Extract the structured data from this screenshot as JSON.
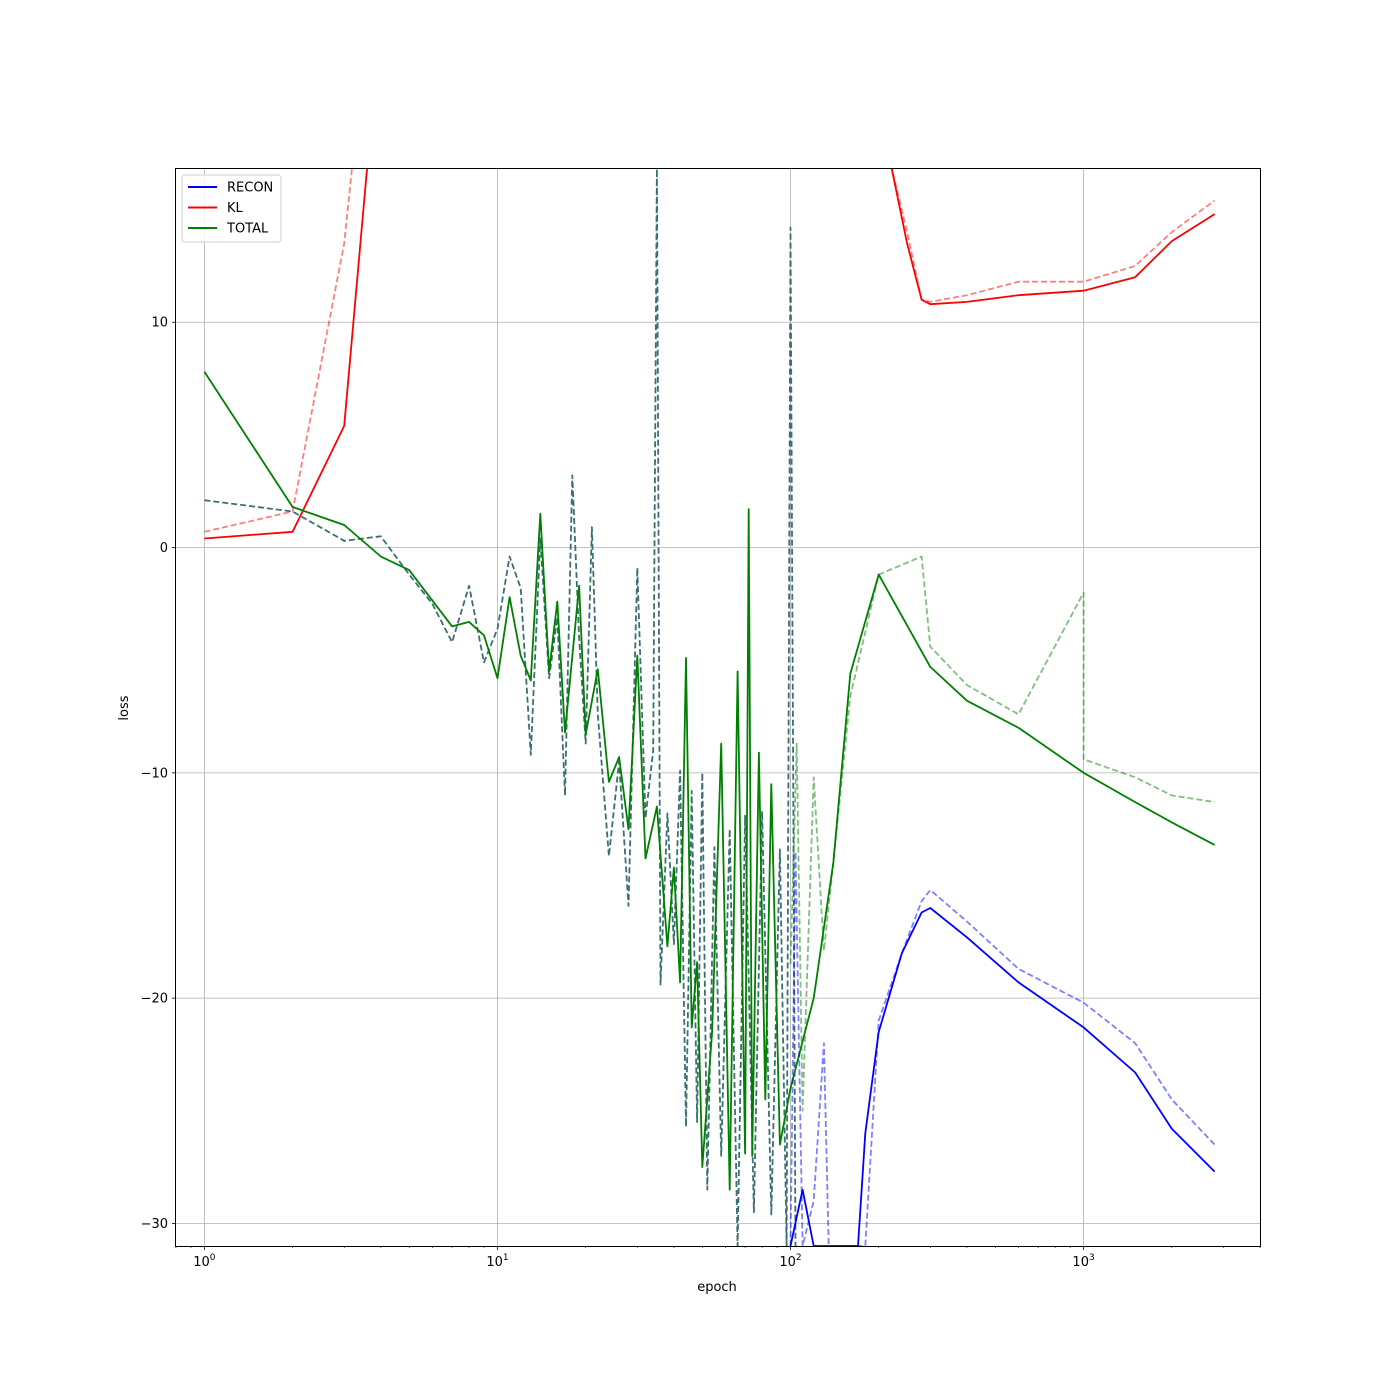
{
  "chart_data": {
    "type": "line",
    "title": "",
    "xlabel": "epoch",
    "ylabel": "loss",
    "xscale": "log",
    "xlim": [
      0.8,
      4000
    ],
    "ylim": [
      -31,
      16.8
    ],
    "grid": true,
    "legend_position": "top-left",
    "x_ticks": [
      {
        "value": 1,
        "base": "10",
        "exp": "0"
      },
      {
        "value": 10,
        "base": "10",
        "exp": "1"
      },
      {
        "value": 100,
        "base": "10",
        "exp": "2"
      },
      {
        "value": 1000,
        "base": "10",
        "exp": "3"
      }
    ],
    "y_ticks": [
      {
        "value": 10,
        "label": "10"
      },
      {
        "value": 0,
        "label": "0"
      },
      {
        "value": -10,
        "label": "−10"
      },
      {
        "value": -20,
        "label": "−20"
      },
      {
        "value": -30,
        "label": "−30"
      }
    ],
    "colors": {
      "recon": "#0000ff",
      "kl": "#ff0000",
      "total": "#008000",
      "overlap": "#3b6f73"
    },
    "legend": [
      {
        "name": "RECON",
        "color": "#0000ff"
      },
      {
        "name": "KL",
        "color": "#ff0000"
      },
      {
        "name": "TOTAL",
        "color": "#008000"
      }
    ],
    "series": [
      {
        "name": "KL",
        "role": "validation",
        "color": "#ff0000",
        "dashed": true,
        "opacity": 0.5,
        "points": [
          [
            1,
            0.7
          ],
          [
            2,
            1.6
          ],
          [
            3,
            13.5
          ],
          [
            3.2,
            17
          ],
          [
            220,
            17
          ],
          [
            250,
            14
          ],
          [
            280,
            11
          ],
          [
            300,
            10.9
          ],
          [
            400,
            11.2
          ],
          [
            600,
            11.8
          ],
          [
            1000,
            11.8
          ],
          [
            1500,
            12.5
          ],
          [
            2000,
            14
          ],
          [
            2800,
            15.4
          ]
        ]
      },
      {
        "name": "KL",
        "role": "train",
        "color": "#ff0000",
        "dashed": false,
        "opacity": 1,
        "points": [
          [
            1,
            0.4
          ],
          [
            2,
            0.7
          ],
          [
            3,
            5.4
          ],
          [
            3.6,
            17
          ],
          [
            220,
            17
          ],
          [
            250,
            13.5
          ],
          [
            280,
            11
          ],
          [
            300,
            10.8
          ],
          [
            400,
            10.9
          ],
          [
            600,
            11.2
          ],
          [
            1000,
            11.4
          ],
          [
            1500,
            12
          ],
          [
            2000,
            13.6
          ],
          [
            2800,
            14.8
          ]
        ]
      },
      {
        "name": "TOTAL",
        "role": "validation",
        "color": "#3b6f73",
        "dashed": true,
        "opacity": 1,
        "points": [
          [
            1,
            2.1
          ],
          [
            2,
            1.6
          ],
          [
            3,
            0.3
          ],
          [
            4,
            0.5
          ],
          [
            5,
            -1.2
          ],
          [
            6,
            -2.5
          ],
          [
            7,
            -4.2
          ],
          [
            8,
            -1.7
          ],
          [
            9,
            -5.1
          ],
          [
            10,
            -3.6
          ],
          [
            11,
            -0.4
          ],
          [
            12,
            -1.8
          ],
          [
            13,
            -9.2
          ],
          [
            14,
            0.4
          ],
          [
            15,
            -5.8
          ],
          [
            16,
            -3.1
          ],
          [
            17,
            -11
          ],
          [
            18,
            3.2
          ],
          [
            19,
            -4
          ],
          [
            20,
            -8.7
          ],
          [
            21,
            0.9
          ],
          [
            22,
            -7.4
          ],
          [
            24,
            -13.7
          ],
          [
            26,
            -9.5
          ],
          [
            28,
            -15.9
          ],
          [
            30,
            -0.9
          ],
          [
            32,
            -12
          ],
          [
            34,
            -9
          ],
          [
            35,
            17
          ],
          [
            36,
            -19.4
          ],
          [
            38,
            -11.8
          ],
          [
            40,
            -17.6
          ],
          [
            42,
            -9.9
          ],
          [
            44,
            -25.7
          ],
          [
            46,
            -10.8
          ],
          [
            48,
            -25.5
          ],
          [
            50,
            -10
          ],
          [
            52,
            -28.5
          ],
          [
            55,
            -13.3
          ],
          [
            58,
            -27
          ],
          [
            62,
            -12.5
          ],
          [
            66,
            -31
          ],
          [
            70,
            -11.9
          ],
          [
            75,
            -29.5
          ],
          [
            80,
            -11.7
          ],
          [
            86,
            -29.6
          ],
          [
            92,
            -13.4
          ],
          [
            97,
            -31
          ],
          [
            100,
            14.2
          ],
          [
            104,
            -31
          ]
        ]
      },
      {
        "name": "TOTAL",
        "role": "train-validation",
        "color": "#008000",
        "dashed": true,
        "opacity": 0.5,
        "points": [
          [
            100,
            -18.5
          ],
          [
            105,
            -8.7
          ],
          [
            110,
            -25
          ],
          [
            120,
            -10.2
          ],
          [
            130,
            -17.9
          ],
          [
            140,
            -14
          ],
          [
            160,
            -6.6
          ],
          [
            200,
            -1.2
          ],
          [
            280,
            -0.4
          ],
          [
            300,
            -4.4
          ],
          [
            400,
            -6.1
          ],
          [
            600,
            -7.4
          ],
          [
            1000,
            -2
          ],
          [
            1000,
            -9.4
          ],
          [
            1500,
            -10.2
          ],
          [
            2000,
            -11
          ],
          [
            2800,
            -11.3
          ]
        ]
      },
      {
        "name": "TOTAL",
        "role": "train",
        "color": "#008000",
        "dashed": false,
        "opacity": 1,
        "points": [
          [
            1,
            7.8
          ],
          [
            2,
            1.8
          ],
          [
            3,
            1.0
          ],
          [
            4,
            -0.4
          ],
          [
            5,
            -1.0
          ],
          [
            7,
            -3.5
          ],
          [
            8,
            -3.3
          ],
          [
            9,
            -3.9
          ],
          [
            10,
            -5.8
          ],
          [
            11,
            -2.2
          ],
          [
            12,
            -4.8
          ],
          [
            13,
            -5.9
          ],
          [
            14,
            1.5
          ],
          [
            15,
            -5.5
          ],
          [
            16,
            -2.4
          ],
          [
            17,
            -8.2
          ],
          [
            19,
            -1.7
          ],
          [
            20,
            -8.3
          ],
          [
            22,
            -5.4
          ],
          [
            24,
            -10.4
          ],
          [
            26,
            -9.3
          ],
          [
            28,
            -12.5
          ],
          [
            30,
            -4.8
          ],
          [
            32,
            -13.8
          ],
          [
            35,
            -11.5
          ],
          [
            38,
            -17.7
          ],
          [
            40,
            -14.2
          ],
          [
            42,
            -19.3
          ],
          [
            44,
            -4.9
          ],
          [
            46,
            -21.3
          ],
          [
            48,
            -18.4
          ],
          [
            50,
            -27.5
          ],
          [
            54,
            -21.5
          ],
          [
            58,
            -8.7
          ],
          [
            62,
            -28.5
          ],
          [
            66,
            -5.5
          ],
          [
            70,
            -26.9
          ],
          [
            72,
            1.7
          ],
          [
            74,
            -27
          ],
          [
            78,
            -9.1
          ],
          [
            82,
            -24.5
          ],
          [
            86,
            -10.5
          ],
          [
            92,
            -26.5
          ],
          [
            100,
            -24
          ],
          [
            120,
            -20
          ],
          [
            140,
            -14
          ],
          [
            160,
            -5.6
          ],
          [
            200,
            -1.2
          ],
          [
            300,
            -5.3
          ],
          [
            400,
            -6.8
          ],
          [
            600,
            -8
          ],
          [
            1000,
            -10
          ],
          [
            1500,
            -11.3
          ],
          [
            2000,
            -12.2
          ],
          [
            2800,
            -13.2
          ]
        ]
      },
      {
        "name": "RECON",
        "role": "validation",
        "color": "#0000ff",
        "dashed": true,
        "opacity": 0.5,
        "points": [
          [
            100,
            -31
          ],
          [
            104,
            -13.5
          ],
          [
            110,
            -31
          ],
          [
            120,
            -29
          ],
          [
            130,
            -22
          ],
          [
            135,
            -31
          ],
          [
            180,
            -31
          ],
          [
            200,
            -21
          ],
          [
            240,
            -18
          ],
          [
            280,
            -15.7
          ],
          [
            300,
            -15.2
          ],
          [
            400,
            -16.6
          ],
          [
            600,
            -18.7
          ],
          [
            1000,
            -20.2
          ],
          [
            1500,
            -22
          ],
          [
            2000,
            -24.5
          ],
          [
            2800,
            -26.5
          ]
        ]
      },
      {
        "name": "RECON",
        "role": "train",
        "color": "#0000ff",
        "dashed": false,
        "opacity": 1,
        "points": [
          [
            100,
            -31
          ],
          [
            110,
            -28.5
          ],
          [
            120,
            -31
          ],
          [
            170,
            -31
          ],
          [
            180,
            -26
          ],
          [
            200,
            -21.5
          ],
          [
            240,
            -18
          ],
          [
            280,
            -16.2
          ],
          [
            300,
            -16
          ],
          [
            400,
            -17.3
          ],
          [
            600,
            -19.3
          ],
          [
            1000,
            -21.3
          ],
          [
            1500,
            -23.3
          ],
          [
            2000,
            -25.8
          ],
          [
            2800,
            -27.7
          ]
        ]
      }
    ]
  }
}
